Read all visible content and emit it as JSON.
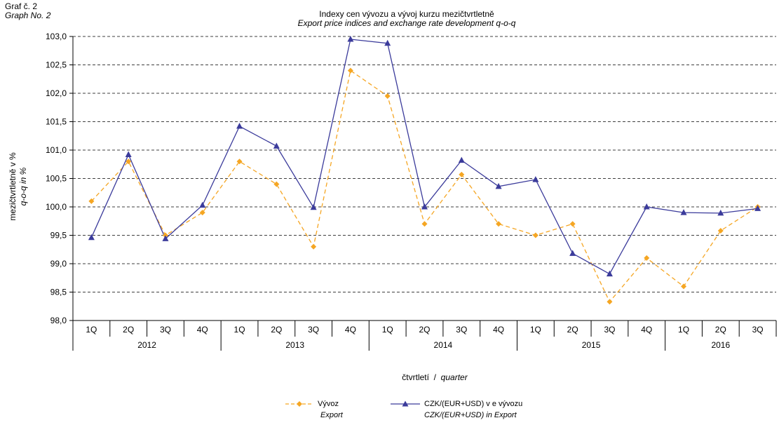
{
  "header": {
    "graf_cz": "Graf č. 2",
    "graf_en": "Graph  No. 2"
  },
  "chart_data": {
    "type": "line",
    "title": "Indexy  cen  vývozu  a  vývoj  kurzu  mezičtvrtletně",
    "subtitle": "Export  price  indices  and  exchange  rate  development  q-o-q",
    "ylabel_cz": "mezičtvrtletně  v %",
    "ylabel_en": "q-o-q  in %",
    "xlabel_cz": "čtvrtletí",
    "xlabel_en": "quarter",
    "ylim": [
      98.0,
      103.0
    ],
    "yticks": [
      "98,0",
      "98,5",
      "99,0",
      "99,5",
      "100,0",
      "100,5",
      "101,0",
      "101,5",
      "102,0",
      "102,5",
      "103,0"
    ],
    "categories": [
      "1Q",
      "2Q",
      "3Q",
      "4Q",
      "1Q",
      "2Q",
      "3Q",
      "4Q",
      "1Q",
      "2Q",
      "3Q",
      "4Q",
      "1Q",
      "2Q",
      "3Q",
      "4Q",
      "1Q",
      "2Q",
      "3Q"
    ],
    "years": [
      {
        "label": "2012",
        "count": 4
      },
      {
        "label": "2013",
        "count": 4
      },
      {
        "label": "2014",
        "count": 4
      },
      {
        "label": "2015",
        "count": 4
      },
      {
        "label": "2016",
        "count": 3
      }
    ],
    "grid": true,
    "legend_position": "bottom",
    "series": [
      {
        "name": "Vývoz",
        "name_en": "Export",
        "color": "#F5A623",
        "style": "dashed",
        "marker": "diamond",
        "values": [
          100.1,
          100.8,
          99.5,
          99.9,
          100.8,
          100.4,
          99.3,
          102.4,
          101.95,
          99.7,
          100.57,
          99.7,
          99.5,
          99.7,
          98.33,
          99.1,
          98.6,
          99.58,
          100.0
        ]
      },
      {
        "name": "CZK/(EUR+USD) v e vývozu",
        "name_en": "CZK/(EUR+USD)  in Export",
        "color": "#3B3B9B",
        "style": "solid",
        "marker": "triangle",
        "values": [
          99.46,
          100.92,
          99.44,
          100.03,
          101.42,
          101.07,
          99.99,
          102.95,
          102.88,
          100.0,
          100.82,
          100.36,
          100.48,
          99.18,
          98.82,
          100.0,
          99.9,
          99.89,
          99.97
        ]
      }
    ]
  }
}
